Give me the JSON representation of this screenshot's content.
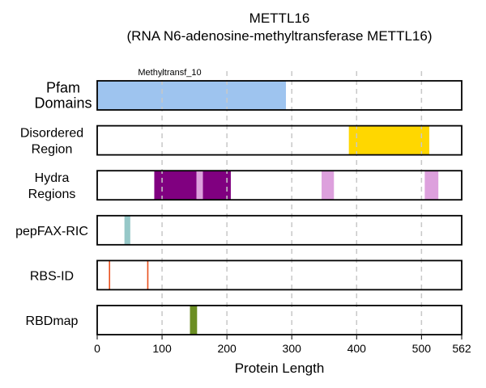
{
  "chart_data": {
    "type": "bar",
    "title": "METTL16",
    "subtitle": "(RNA N6-adenosine-methyltransferase METTL16)",
    "xlabel": "Protein Length",
    "xlim": [
      0,
      562
    ],
    "xticks": [
      0,
      100,
      200,
      300,
      400,
      500,
      562
    ],
    "xtick_labels": [
      "0",
      "100",
      "200",
      "300",
      "400",
      "500",
      "562"
    ],
    "grid": "vertical dashed",
    "tracks": [
      {
        "name": "Pfam Domains",
        "label_lines": [
          "Pfam",
          "Domains"
        ],
        "segments": [
          {
            "start": 0,
            "end": 291,
            "color": "#9ec4ef",
            "label": "Methyltransf_10"
          }
        ]
      },
      {
        "name": "Disordered Region",
        "label_lines": [
          "Disordered",
          "Region"
        ],
        "segments": [
          {
            "start": 388,
            "end": 512,
            "color": "#ffd700"
          }
        ]
      },
      {
        "name": "Hydra Regions",
        "label_lines": [
          "Hydra",
          "Regions"
        ],
        "segments": [
          {
            "start": 88,
            "end": 153,
            "color": "#800080"
          },
          {
            "start": 153,
            "end": 163,
            "color": "#dda0dd"
          },
          {
            "start": 163,
            "end": 206,
            "color": "#800080"
          },
          {
            "start": 346,
            "end": 365,
            "color": "#dda0dd"
          },
          {
            "start": 505,
            "end": 526,
            "color": "#dda0dd"
          }
        ]
      },
      {
        "name": "pepFAX-RIC",
        "label_lines": [
          "pepFAX-RIC"
        ],
        "segments": [
          {
            "start": 42,
            "end": 51,
            "color": "#96c8c8"
          }
        ]
      },
      {
        "name": "RBS-ID",
        "label_lines": [
          "RBS-ID"
        ],
        "segments": [
          {
            "start": 18,
            "end": 20,
            "color": "#e8501e"
          },
          {
            "start": 77,
            "end": 79,
            "color": "#e8501e"
          }
        ]
      },
      {
        "name": "RBDmap",
        "label_lines": [
          "RBDmap"
        ],
        "segments": [
          {
            "start": 143,
            "end": 154,
            "color": "#6b8e23"
          }
        ]
      }
    ]
  }
}
